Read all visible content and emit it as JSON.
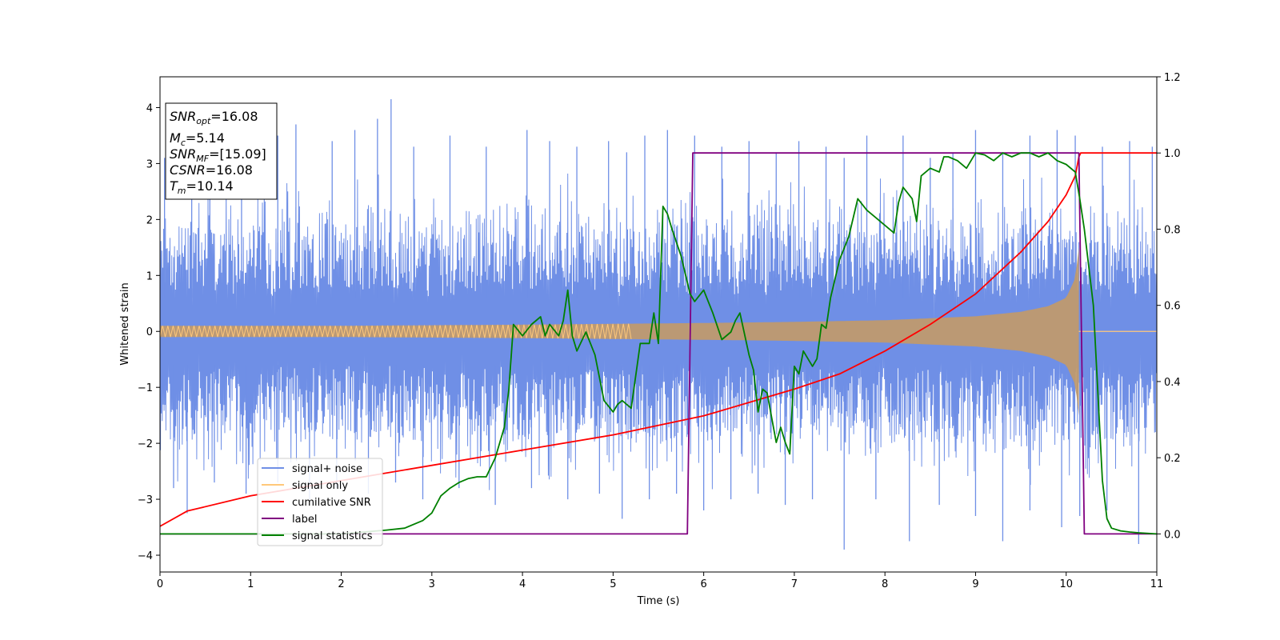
{
  "chart_data": {
    "type": "line",
    "xlabel": "Time (s)",
    "ylabel_left": "Whitened strain",
    "xlim": [
      0,
      11
    ],
    "ylim_left": [
      -4.3,
      4.55
    ],
    "ylim_right": [
      -0.1,
      1.2
    ],
    "x_ticks": [
      "0",
      "1",
      "2",
      "3",
      "4",
      "5",
      "6",
      "7",
      "8",
      "9",
      "10",
      "11"
    ],
    "y_ticks_left": [
      "−4",
      "−3",
      "−2",
      "−1",
      "0",
      "1",
      "2",
      "3",
      "4"
    ],
    "y_ticks_right": [
      "0.0",
      "0.2",
      "0.4",
      "0.6",
      "0.8",
      "1.0",
      "1.2"
    ],
    "grid": false,
    "legend_position": "lower-left",
    "info_box": {
      "snr_opt": {
        "main": "SNR",
        "sub": "opt",
        "value": "=16.08"
      },
      "mc": {
        "main": "M",
        "sub": "c",
        "value": "=5.14"
      },
      "snr_mf": {
        "main": "SNR",
        "sub": "MF",
        "value": "=[15.09]"
      },
      "csnr": {
        "main": "CSNR",
        "sub": "",
        "value": "=16.08"
      },
      "tm": {
        "main": "T",
        "sub": "m",
        "value": "=10.14"
      }
    },
    "series": [
      {
        "name": "signal+ noise",
        "color": "#6f8fe6",
        "axis": "left",
        "description": "noise band envelope",
        "peak_x": [
          0.05,
          0.35,
          0.55,
          0.9,
          1.3,
          1.5,
          1.9,
          2.15,
          2.4,
          2.55,
          2.8,
          3.2,
          3.6,
          4.05,
          4.3,
          4.6,
          4.95,
          5.15,
          5.35,
          5.6,
          5.9,
          6.2,
          6.5,
          6.8,
          7.05,
          7.35,
          7.55,
          7.8,
          8.2,
          8.5,
          8.75,
          9.0,
          9.3,
          9.6,
          9.9,
          10.1,
          10.4,
          10.7,
          10.95
        ],
        "peak_y": [
          3.1,
          3.3,
          3.0,
          3.2,
          3.5,
          3.7,
          3.4,
          3.6,
          3.8,
          4.15,
          3.3,
          3.5,
          3.3,
          3.6,
          3.4,
          3.3,
          3.4,
          3.2,
          3.5,
          3.6,
          3.5,
          3.3,
          3.4,
          3.2,
          3.4,
          3.3,
          3.1,
          3.5,
          3.5,
          3.1,
          3.2,
          3.6,
          3.2,
          3.5,
          3.6,
          3.5,
          3.3,
          3.4,
          3.3
        ],
        "trough_x": [
          0.15,
          0.3,
          0.6,
          0.95,
          1.3,
          1.65,
          1.95,
          2.3,
          2.6,
          2.9,
          3.3,
          3.7,
          4.1,
          4.5,
          4.85,
          5.1,
          5.4,
          5.7,
          6.0,
          6.3,
          6.6,
          6.9,
          7.2,
          7.55,
          7.9,
          8.27,
          8.6,
          9.0,
          9.3,
          9.6,
          9.95,
          10.15,
          10.45,
          10.8
        ],
        "trough_y": [
          -2.8,
          -3.25,
          -2.7,
          -2.9,
          -2.7,
          -3.0,
          -2.8,
          -2.9,
          -2.7,
          -3.0,
          -2.8,
          -3.1,
          -2.8,
          -3.0,
          -2.9,
          -3.35,
          -3.0,
          -2.9,
          -3.2,
          -3.0,
          -2.9,
          -3.1,
          -3.0,
          -3.9,
          -3.0,
          -3.75,
          -3.1,
          -3.3,
          -3.75,
          -3.2,
          -3.5,
          -3.3,
          -3.2,
          -3.8
        ]
      },
      {
        "name": "signal only",
        "color": "#ffc87a",
        "axis": "left",
        "description": "chirp envelope amplitude",
        "x": [
          0,
          2,
          4,
          6,
          7,
          8,
          9,
          9.5,
          9.8,
          10.0,
          10.1,
          10.14
        ],
        "amplitude": [
          0.1,
          0.1,
          0.12,
          0.15,
          0.17,
          0.2,
          0.27,
          0.35,
          0.45,
          0.6,
          0.95,
          1.5
        ]
      },
      {
        "name": "cumilative SNR",
        "color": "#ff0000",
        "axis": "right",
        "x": [
          0,
          0.3,
          1,
          2,
          3,
          4,
          5,
          6,
          7,
          7.5,
          8,
          8.5,
          9,
          9.5,
          9.8,
          10.0,
          10.1,
          10.14,
          10.16,
          11
        ],
        "y": [
          0.02,
          0.06,
          0.1,
          0.14,
          0.18,
          0.22,
          0.26,
          0.31,
          0.38,
          0.42,
          0.48,
          0.55,
          0.63,
          0.74,
          0.82,
          0.89,
          0.94,
          0.99,
          1.0,
          1.0
        ]
      },
      {
        "name": "label",
        "color": "#800080",
        "axis": "right",
        "x": [
          0,
          5.82,
          5.88,
          10.14,
          10.2,
          11
        ],
        "y": [
          0.0,
          0.0,
          1.0,
          1.0,
          0.0,
          0.0
        ]
      },
      {
        "name": "signal statistics",
        "color": "#008000",
        "axis": "right",
        "x": [
          0,
          1,
          2.0,
          2.5,
          2.7,
          2.9,
          3.0,
          3.1,
          3.2,
          3.3,
          3.4,
          3.5,
          3.55,
          3.6,
          3.7,
          3.8,
          3.85,
          3.9,
          4.0,
          4.1,
          4.2,
          4.25,
          4.3,
          4.4,
          4.45,
          4.5,
          4.55,
          4.6,
          4.7,
          4.8,
          4.9,
          5.0,
          5.05,
          5.1,
          5.2,
          5.3,
          5.4,
          5.45,
          5.5,
          5.55,
          5.6,
          5.65,
          5.75,
          5.85,
          5.9,
          6.0,
          6.05,
          6.1,
          6.2,
          6.3,
          6.35,
          6.4,
          6.5,
          6.55,
          6.6,
          6.65,
          6.7,
          6.8,
          6.85,
          6.9,
          6.95,
          7.0,
          7.05,
          7.1,
          7.2,
          7.25,
          7.3,
          7.35,
          7.4,
          7.5,
          7.6,
          7.7,
          7.8,
          7.9,
          8.0,
          8.1,
          8.15,
          8.2,
          8.3,
          8.35,
          8.4,
          8.5,
          8.6,
          8.65,
          8.7,
          8.8,
          8.9,
          9.0,
          9.1,
          9.2,
          9.3,
          9.4,
          9.5,
          9.6,
          9.7,
          9.8,
          9.9,
          10.0,
          10.1,
          10.15,
          10.2,
          10.3,
          10.4,
          10.45,
          10.5,
          10.6,
          10.7,
          10.8,
          11.0
        ],
        "y": [
          0.0,
          0.0,
          0.0,
          0.01,
          0.015,
          0.035,
          0.055,
          0.1,
          0.12,
          0.135,
          0.145,
          0.15,
          0.15,
          0.15,
          0.2,
          0.28,
          0.38,
          0.55,
          0.52,
          0.55,
          0.57,
          0.52,
          0.55,
          0.52,
          0.56,
          0.64,
          0.52,
          0.48,
          0.53,
          0.47,
          0.35,
          0.32,
          0.34,
          0.35,
          0.33,
          0.5,
          0.5,
          0.58,
          0.5,
          0.86,
          0.84,
          0.8,
          0.73,
          0.63,
          0.61,
          0.64,
          0.61,
          0.58,
          0.51,
          0.53,
          0.56,
          0.58,
          0.47,
          0.43,
          0.32,
          0.38,
          0.37,
          0.24,
          0.28,
          0.24,
          0.21,
          0.44,
          0.42,
          0.48,
          0.44,
          0.46,
          0.55,
          0.54,
          0.62,
          0.72,
          0.78,
          0.88,
          0.85,
          0.83,
          0.81,
          0.79,
          0.87,
          0.91,
          0.88,
          0.82,
          0.94,
          0.96,
          0.95,
          0.99,
          0.99,
          0.98,
          0.96,
          1.0,
          0.995,
          0.98,
          1.0,
          0.99,
          1.0,
          1.0,
          0.99,
          1.0,
          0.98,
          0.97,
          0.95,
          0.88,
          0.8,
          0.6,
          0.14,
          0.04,
          0.015,
          0.008,
          0.005,
          0.003,
          0.0
        ]
      }
    ]
  }
}
